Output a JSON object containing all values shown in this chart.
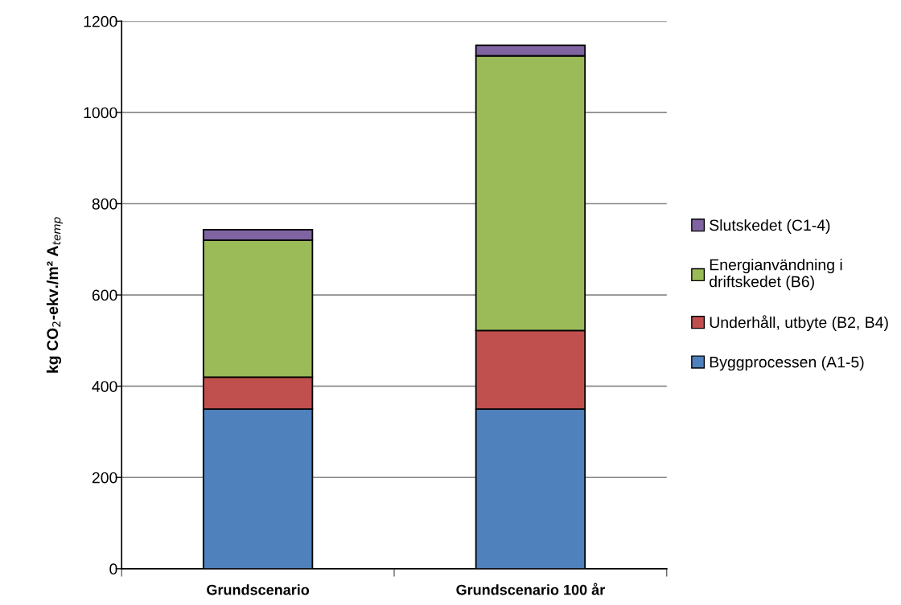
{
  "chart_data": {
    "type": "bar",
    "stacked": true,
    "ylabel": "kg CO$_{2}$-ekv./m² A$_{temp}$",
    "categories": [
      "Grundscenario",
      "Grundscenario 100 år"
    ],
    "series": [
      {
        "name": "Byggprocessen (A1-5)",
        "color": "#4f81bd",
        "values": [
          350,
          350
        ]
      },
      {
        "name": "Underhåll, utbyte (B2, B4)",
        "color": "#c0504d",
        "values": [
          70,
          172
        ]
      },
      {
        "name": "Energianvändning i driftskedet (B6)",
        "color": "#9bbb59",
        "values": [
          300,
          602
        ]
      },
      {
        "name": "Slutskedet (C1-4)",
        "color": "#8064a2",
        "values": [
          23,
          23
        ]
      }
    ],
    "ylim": [
      0,
      1200
    ],
    "yticks": [
      0,
      200,
      400,
      600,
      800,
      1000,
      1200
    ],
    "grid": "y",
    "legend": "right"
  }
}
